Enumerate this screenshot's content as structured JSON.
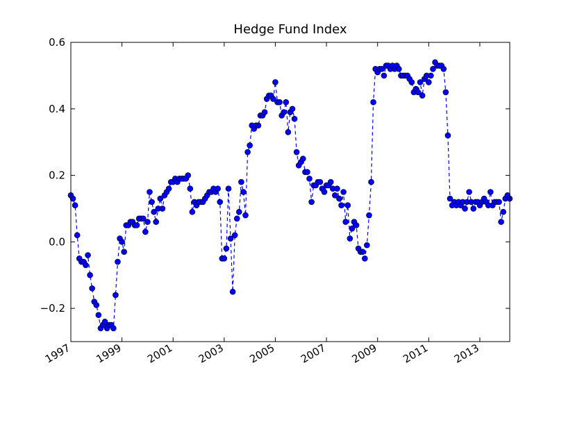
{
  "chart_data": {
    "type": "line",
    "title": "Hedge Fund Index",
    "color": "#0000ff",
    "x": [
      1997,
      1997.083,
      1997.167,
      1997.25,
      1997.333,
      1997.417,
      1997.5,
      1997.583,
      1997.667,
      1997.75,
      1997.833,
      1997.917,
      1998,
      1998.083,
      1998.167,
      1998.25,
      1998.333,
      1998.417,
      1998.5,
      1998.583,
      1998.667,
      1998.75,
      1998.833,
      1998.917,
      1999,
      1999.083,
      1999.167,
      1999.25,
      1999.333,
      1999.417,
      1999.5,
      1999.583,
      1999.667,
      1999.75,
      1999.833,
      1999.917,
      2000,
      2000.083,
      2000.167,
      2000.25,
      2000.333,
      2000.417,
      2000.5,
      2000.583,
      2000.667,
      2000.75,
      2000.833,
      2000.917,
      2001,
      2001.083,
      2001.167,
      2001.25,
      2001.333,
      2001.417,
      2001.5,
      2001.583,
      2001.667,
      2001.75,
      2001.833,
      2001.917,
      2002,
      2002.083,
      2002.167,
      2002.25,
      2002.333,
      2002.417,
      2002.5,
      2002.583,
      2002.667,
      2002.75,
      2002.833,
      2002.917,
      2003,
      2003.083,
      2003.167,
      2003.25,
      2003.333,
      2003.417,
      2003.5,
      2003.583,
      2003.667,
      2003.75,
      2003.833,
      2003.917,
      2004,
      2004.083,
      2004.167,
      2004.25,
      2004.333,
      2004.417,
      2004.5,
      2004.583,
      2004.667,
      2004.75,
      2004.833,
      2004.917,
      2005,
      2005.083,
      2005.167,
      2005.25,
      2005.333,
      2005.417,
      2005.5,
      2005.583,
      2005.667,
      2005.75,
      2005.833,
      2005.917,
      2006,
      2006.083,
      2006.167,
      2006.25,
      2006.333,
      2006.417,
      2006.5,
      2006.583,
      2006.667,
      2006.75,
      2006.833,
      2006.917,
      2007,
      2007.083,
      2007.167,
      2007.25,
      2007.333,
      2007.417,
      2007.5,
      2007.583,
      2007.667,
      2007.75,
      2007.833,
      2007.917,
      2008,
      2008.083,
      2008.167,
      2008.25,
      2008.333,
      2008.417,
      2008.5,
      2008.583,
      2008.667,
      2008.75,
      2008.833,
      2008.917,
      2009,
      2009.083,
      2009.167,
      2009.25,
      2009.333,
      2009.417,
      2009.5,
      2009.583,
      2009.667,
      2009.75,
      2009.833,
      2009.917,
      2010,
      2010.083,
      2010.167,
      2010.25,
      2010.333,
      2010.417,
      2010.5,
      2010.583,
      2010.667,
      2010.75,
      2010.833,
      2010.917,
      2011,
      2011.083,
      2011.167,
      2011.25,
      2011.333,
      2011.417,
      2011.5,
      2011.583,
      2011.667,
      2011.75,
      2011.833,
      2011.917,
      2012,
      2012.083,
      2012.167,
      2012.25,
      2012.333,
      2012.417,
      2012.5,
      2012.583,
      2012.667,
      2012.75,
      2012.833,
      2012.917,
      2013,
      2013.083,
      2013.167,
      2013.25,
      2013.333,
      2013.417,
      2013.5,
      2013.583,
      2013.667,
      2013.75,
      2013.833,
      2013.917,
      2014,
      2014.083,
      2014.167
    ],
    "values": [
      0.14,
      0.13,
      0.11,
      0.02,
      -0.05,
      -0.06,
      -0.06,
      -0.07,
      -0.04,
      -0.1,
      -0.14,
      -0.18,
      -0.19,
      -0.22,
      -0.26,
      -0.25,
      -0.24,
      -0.26,
      -0.25,
      -0.25,
      -0.26,
      -0.16,
      -0.06,
      0.01,
      0.0,
      -0.03,
      0.05,
      0.05,
      0.06,
      0.06,
      0.05,
      0.05,
      0.07,
      0.07,
      0.07,
      0.03,
      0.06,
      0.15,
      0.12,
      0.09,
      0.06,
      0.1,
      0.13,
      0.1,
      0.14,
      0.15,
      0.16,
      0.18,
      0.18,
      0.19,
      0.18,
      0.19,
      0.19,
      0.19,
      0.19,
      0.2,
      0.16,
      0.09,
      0.12,
      0.11,
      0.12,
      0.12,
      0.12,
      0.13,
      0.14,
      0.15,
      0.15,
      0.16,
      0.15,
      0.16,
      0.12,
      -0.05,
      -0.05,
      -0.02,
      0.16,
      0.01,
      -0.15,
      0.02,
      0.07,
      0.09,
      0.18,
      0.15,
      0.08,
      0.27,
      0.29,
      0.35,
      0.34,
      0.35,
      0.35,
      0.38,
      0.38,
      0.39,
      0.43,
      0.44,
      0.44,
      0.43,
      0.48,
      0.42,
      0.42,
      0.38,
      0.39,
      0.42,
      0.33,
      0.39,
      0.4,
      0.37,
      0.27,
      0.23,
      0.24,
      0.25,
      0.21,
      0.21,
      0.19,
      0.12,
      0.17,
      0.17,
      0.18,
      0.18,
      0.16,
      0.15,
      0.17,
      0.17,
      0.18,
      0.16,
      0.14,
      0.16,
      0.13,
      0.11,
      0.15,
      0.06,
      0.11,
      0.01,
      0.04,
      0.06,
      0.05,
      -0.02,
      -0.03,
      -0.03,
      -0.05,
      -0.01,
      0.08,
      0.18,
      0.42,
      0.52,
      0.51,
      0.52,
      0.52,
      0.5,
      0.53,
      0.53,
      0.52,
      0.53,
      0.52,
      0.53,
      0.52,
      0.5,
      0.5,
      0.5,
      0.5,
      0.49,
      0.48,
      0.45,
      0.46,
      0.45,
      0.48,
      0.44,
      0.49,
      0.5,
      0.48,
      0.5,
      0.52,
      0.54,
      0.53,
      0.53,
      0.53,
      0.52,
      0.45,
      0.32,
      0.13,
      0.11,
      0.12,
      0.11,
      0.12,
      0.11,
      0.12,
      0.1,
      0.12,
      0.15,
      0.12,
      0.1,
      0.12,
      0.12,
      0.11,
      0.12,
      0.13,
      0.12,
      0.11,
      0.15,
      0.11,
      0.12,
      0.12,
      0.12,
      0.06,
      0.09,
      0.13,
      0.14,
      0.13
    ],
    "xlim": [
      1997,
      2014.17
    ],
    "xticks": [
      1997,
      1999,
      2001,
      2003,
      2005,
      2007,
      2009,
      2011,
      2013
    ],
    "ylim": [
      -0.3,
      0.6
    ],
    "yticks": [
      {
        "value": -0.2,
        "label": "−0.2"
      },
      {
        "value": 0,
        "label": "0.0"
      },
      0.2,
      0.4,
      0.6
    ],
    "marker": true,
    "linestyle": "dashed"
  }
}
